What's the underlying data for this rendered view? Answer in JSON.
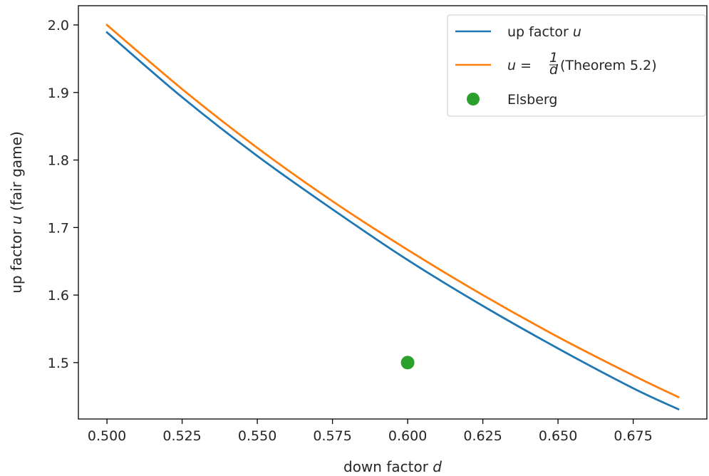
{
  "chart_data": {
    "type": "line",
    "xlabel_text": "down factor ",
    "xlabel_var": "d",
    "ylabel_text": "up factor ",
    "ylabel_var": "u",
    "ylabel_suffix": " (fair game)",
    "xlim": [
      0.4905,
      0.6995
    ],
    "ylim": [
      1.4165,
      2.0285
    ],
    "x_ticks": [
      0.5,
      0.525,
      0.55,
      0.575,
      0.6,
      0.625,
      0.65,
      0.675
    ],
    "x_tick_labels": [
      "0.500",
      "0.525",
      "0.550",
      "0.575",
      "0.600",
      "0.625",
      "0.650",
      "0.675"
    ],
    "y_ticks": [
      1.5,
      1.6,
      1.7,
      1.8,
      1.9,
      2.0
    ],
    "y_tick_labels": [
      "1.5",
      "1.6",
      "1.7",
      "1.8",
      "1.9",
      "2.0"
    ],
    "legend_position": "upper right",
    "series": [
      {
        "name_prefix": "up factor ",
        "name_var": "u",
        "kind": "line",
        "color": "#1f77b4",
        "x": [
          0.5,
          0.525,
          0.55,
          0.575,
          0.6,
          0.625,
          0.65,
          0.675,
          0.69
        ],
        "y": [
          1.989,
          1.893,
          1.806,
          1.727,
          1.652,
          1.584,
          1.521,
          1.462,
          1.431
        ]
      },
      {
        "name_prefix": "u",
        "name_eq": " = ",
        "name_frac_num": "1",
        "name_frac_den": "d",
        "name_suffix": " (Theorem 5.2)",
        "kind": "line",
        "color": "#ff7f0e",
        "x": [
          0.5,
          0.525,
          0.55,
          0.575,
          0.6,
          0.625,
          0.65,
          0.675,
          0.69
        ],
        "y": [
          2.0,
          1.905,
          1.818,
          1.739,
          1.667,
          1.6,
          1.538,
          1.481,
          1.449
        ]
      },
      {
        "name": "Elsberg",
        "kind": "point",
        "color": "#2ca02c",
        "x": [
          0.6
        ],
        "y": [
          1.5
        ]
      }
    ]
  }
}
